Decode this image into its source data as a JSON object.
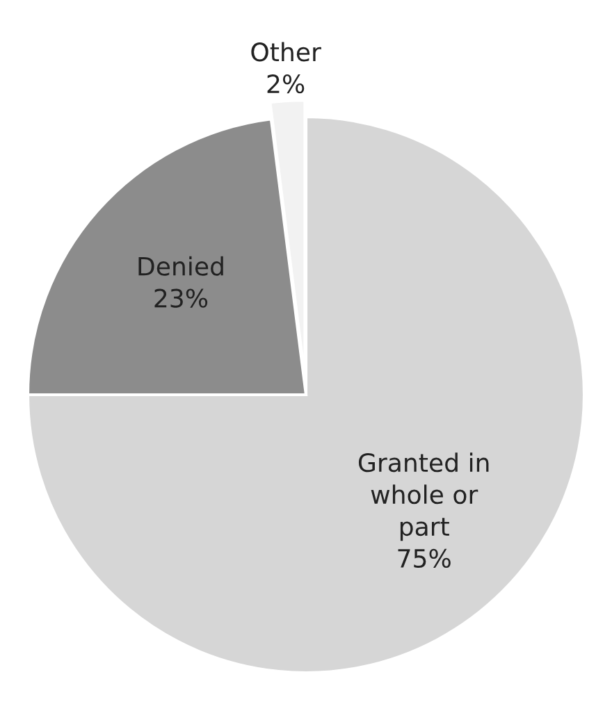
{
  "chart_data": {
    "type": "pie",
    "categories": [
      "Granted in\nwhole or\npart",
      "Denied",
      "Other"
    ],
    "values": [
      75,
      23,
      2
    ],
    "value_labels": [
      "75%",
      "23%",
      "2%"
    ],
    "colors": [
      "#d6d6d6",
      "#8c8c8c",
      "#f2f2f2"
    ]
  }
}
